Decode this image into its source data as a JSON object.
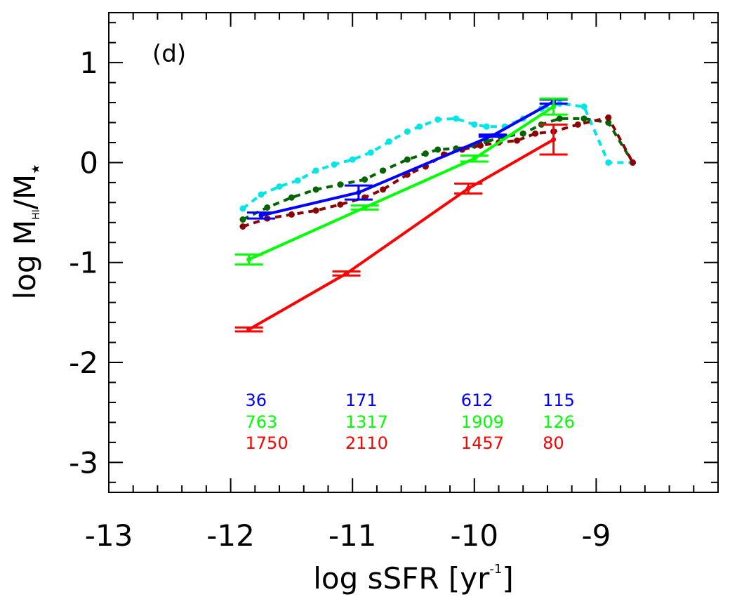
{
  "chart_data": {
    "type": "line",
    "panel_label": "(d)",
    "xlabel": "log sSFR [yr",
    "xlabel_sup": "-1",
    "xlabel_end": "]",
    "ylabel": "log M",
    "ylabel_sub": "HI",
    "ylabel_sep": "/M",
    "ylabel_sub2": "★",
    "xlim": [
      -13.0,
      -8.0
    ],
    "ylim": [
      -3.3,
      1.5
    ],
    "xticks": [
      -13,
      -12,
      -11,
      -10,
      -9
    ],
    "xtick_labels": [
      "-13",
      "-12",
      "-11",
      "-10",
      "-9"
    ],
    "yticks": [
      -3,
      -2,
      -1,
      0,
      1
    ],
    "ytick_labels": [
      "-3",
      "-2",
      "-1",
      "0",
      "1"
    ],
    "grid": false,
    "series": [
      {
        "color": "#00e5e5",
        "style": "dashed",
        "marker": "dot",
        "x": [
          -11.9,
          -11.75,
          -11.6,
          -11.45,
          -11.3,
          -11.15,
          -11.0,
          -10.85,
          -10.7,
          -10.55,
          -10.45,
          -10.3,
          -10.15,
          -10.0,
          -9.9,
          -9.75,
          -9.6,
          -9.45,
          -9.3,
          -9.1,
          -8.9,
          -8.7
        ],
        "y": [
          -0.46,
          -0.32,
          -0.24,
          -0.18,
          -0.08,
          -0.02,
          0.03,
          0.1,
          0.21,
          0.31,
          0.36,
          0.43,
          0.44,
          0.38,
          0.36,
          0.36,
          0.44,
          0.54,
          0.59,
          0.56,
          0.0,
          0.0
        ]
      },
      {
        "color": "#006400",
        "style": "dashed",
        "marker": "dot",
        "x": [
          -11.9,
          -11.7,
          -11.5,
          -11.3,
          -11.1,
          -10.9,
          -10.75,
          -10.55,
          -10.4,
          -10.3,
          -10.15,
          -10.0,
          -9.9,
          -9.75,
          -9.6,
          -9.45,
          -9.3,
          -9.1,
          -8.9,
          -8.7
        ],
        "y": [
          -0.57,
          -0.45,
          -0.35,
          -0.27,
          -0.22,
          -0.17,
          -0.08,
          0.03,
          0.09,
          0.13,
          0.14,
          0.17,
          0.21,
          0.26,
          0.29,
          0.38,
          0.44,
          0.44,
          0.4,
          0.0
        ]
      },
      {
        "color": "#8b0000",
        "style": "dashed",
        "marker": "dot",
        "x": [
          -11.9,
          -11.7,
          -11.5,
          -11.3,
          -11.1,
          -10.9,
          -10.75,
          -10.55,
          -10.4,
          -10.25,
          -10.1,
          -9.95,
          -9.8,
          -9.65,
          -9.5,
          -9.35,
          -9.15,
          -8.9,
          -8.7
        ],
        "y": [
          -0.64,
          -0.56,
          -0.52,
          -0.48,
          -0.42,
          -0.35,
          -0.27,
          -0.12,
          -0.04,
          0.08,
          0.13,
          0.17,
          0.2,
          0.22,
          0.29,
          0.31,
          0.38,
          0.45,
          0.0
        ]
      },
      {
        "color": "#0000ff",
        "style": "solid",
        "marker": "errorbar",
        "x": [
          -11.75,
          -10.95,
          -9.85,
          -9.35
        ],
        "y": [
          -0.53,
          -0.3,
          0.27,
          0.61
        ],
        "err": [
          0.03,
          0.07,
          0.01,
          0.02
        ]
      },
      {
        "color": "#00ff00",
        "style": "solid",
        "marker": "errorbar",
        "x": [
          -11.85,
          -10.9,
          -10.0,
          -9.35
        ],
        "y": [
          -0.97,
          -0.45,
          0.04,
          0.56
        ],
        "err": [
          0.05,
          0.02,
          0.03,
          0.08
        ]
      },
      {
        "color": "#ff0000",
        "style": "solid",
        "marker": "errorbar",
        "x": [
          -11.85,
          -11.05,
          -10.05,
          -9.35
        ],
        "y": [
          -1.67,
          -1.11,
          -0.26,
          0.23
        ],
        "err": [
          0.02,
          0.02,
          0.05,
          0.15
        ]
      }
    ],
    "count_rows": [
      {
        "color": "#0000ff",
        "labels": [
          "36",
          "171",
          "612",
          "115"
        ]
      },
      {
        "color": "#00ff00",
        "labels": [
          "763",
          "1317",
          "1909",
          "126"
        ]
      },
      {
        "color": "#ff0000",
        "labels": [
          "1750",
          "2110",
          "1457",
          "80"
        ]
      }
    ],
    "count_x": [
      -11.77,
      -10.95,
      -10.0,
      -9.33
    ]
  }
}
